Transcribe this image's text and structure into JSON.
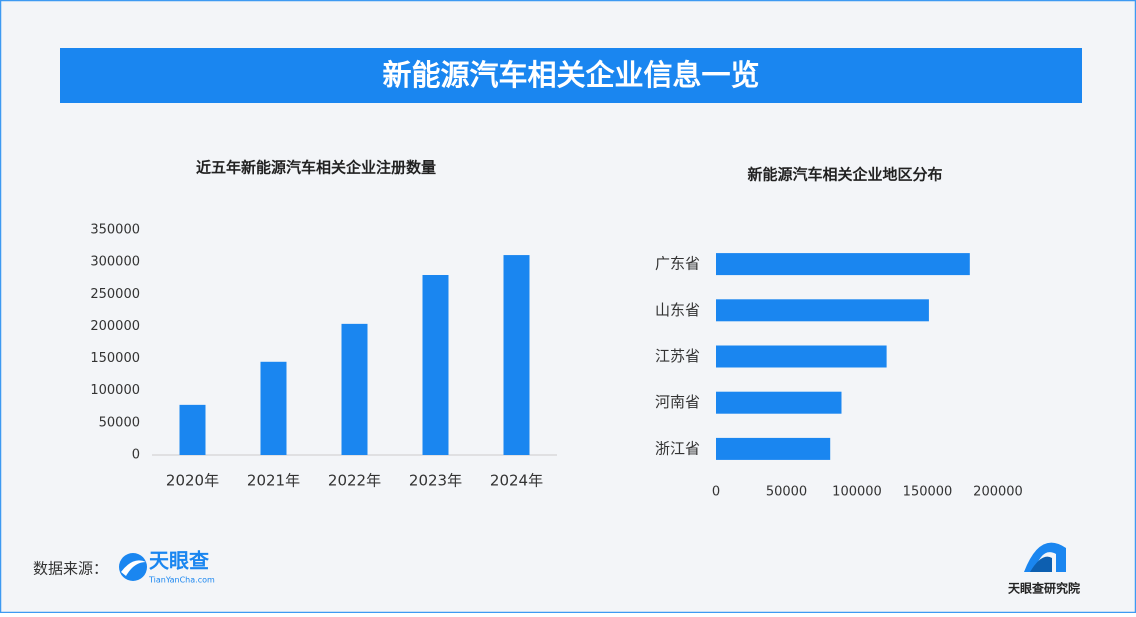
{
  "title": "新能源汽车相关企业信息一览",
  "chart_data": [
    {
      "type": "bar",
      "title": "近五年新能源汽车相关企业注册数量",
      "categories": [
        "2020年",
        "2021年",
        "2022年",
        "2023年",
        "2024年"
      ],
      "values": [
        78000,
        145000,
        204000,
        280000,
        311000
      ],
      "color": "#1a86f0",
      "ylim": [
        0,
        350000
      ],
      "yticks": [
        0,
        50000,
        100000,
        150000,
        200000,
        250000,
        300000,
        350000
      ],
      "grid": false
    },
    {
      "type": "barh",
      "title": "新能源汽车相关企业地区分布",
      "categories": [
        "广东省",
        "山东省",
        "江苏省",
        "河南省",
        "浙江省"
      ],
      "values": [
        180000,
        151000,
        121000,
        89000,
        81000
      ],
      "color": "#1a86f0",
      "xlim": [
        0,
        200000
      ],
      "xticks": [
        0,
        50000,
        100000,
        150000,
        200000
      ],
      "grid": false
    }
  ],
  "footer": {
    "source_label": "数据来源：",
    "logo_name": "天眼查",
    "logo_url": "TianYanCha.com",
    "institute": "天眼查研究院"
  }
}
